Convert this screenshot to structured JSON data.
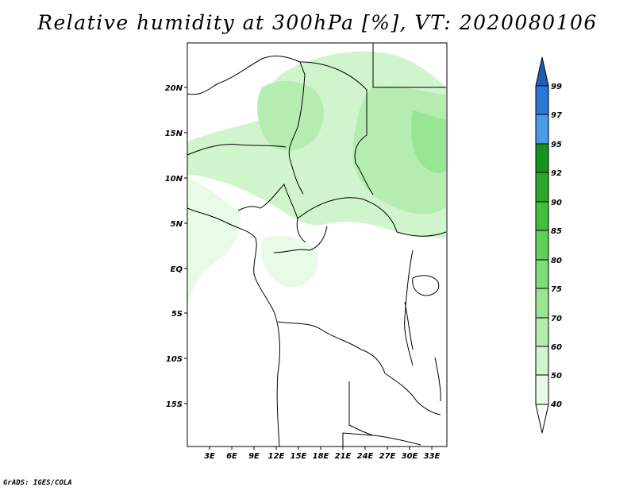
{
  "title": "Relative humidity at 300hPa [%], VT: 2020080106",
  "credit": "GrADS: IGES/COLA",
  "lat_labels": [
    "20N",
    "15N",
    "10N",
    "5N",
    "EQ",
    "5S",
    "10S",
    "15S"
  ],
  "lon_labels": [
    "3E",
    "6E",
    "9E",
    "12E",
    "15E",
    "18E",
    "21E",
    "24E",
    "27E",
    "30E",
    "33E"
  ],
  "colorbar": {
    "labels": [
      "40",
      "50",
      "60",
      "70",
      "75",
      "80",
      "85",
      "90",
      "92",
      "95",
      "97",
      "99"
    ],
    "colors": [
      "#ffffff",
      "#e8fbe6",
      "#d0f5cc",
      "#b5edb0",
      "#98e693",
      "#7ddd78",
      "#5fd15a",
      "#40be3c",
      "#2aa927",
      "#15931a",
      "#4a9be8",
      "#2a78d6",
      "#1e5ebb"
    ]
  }
}
